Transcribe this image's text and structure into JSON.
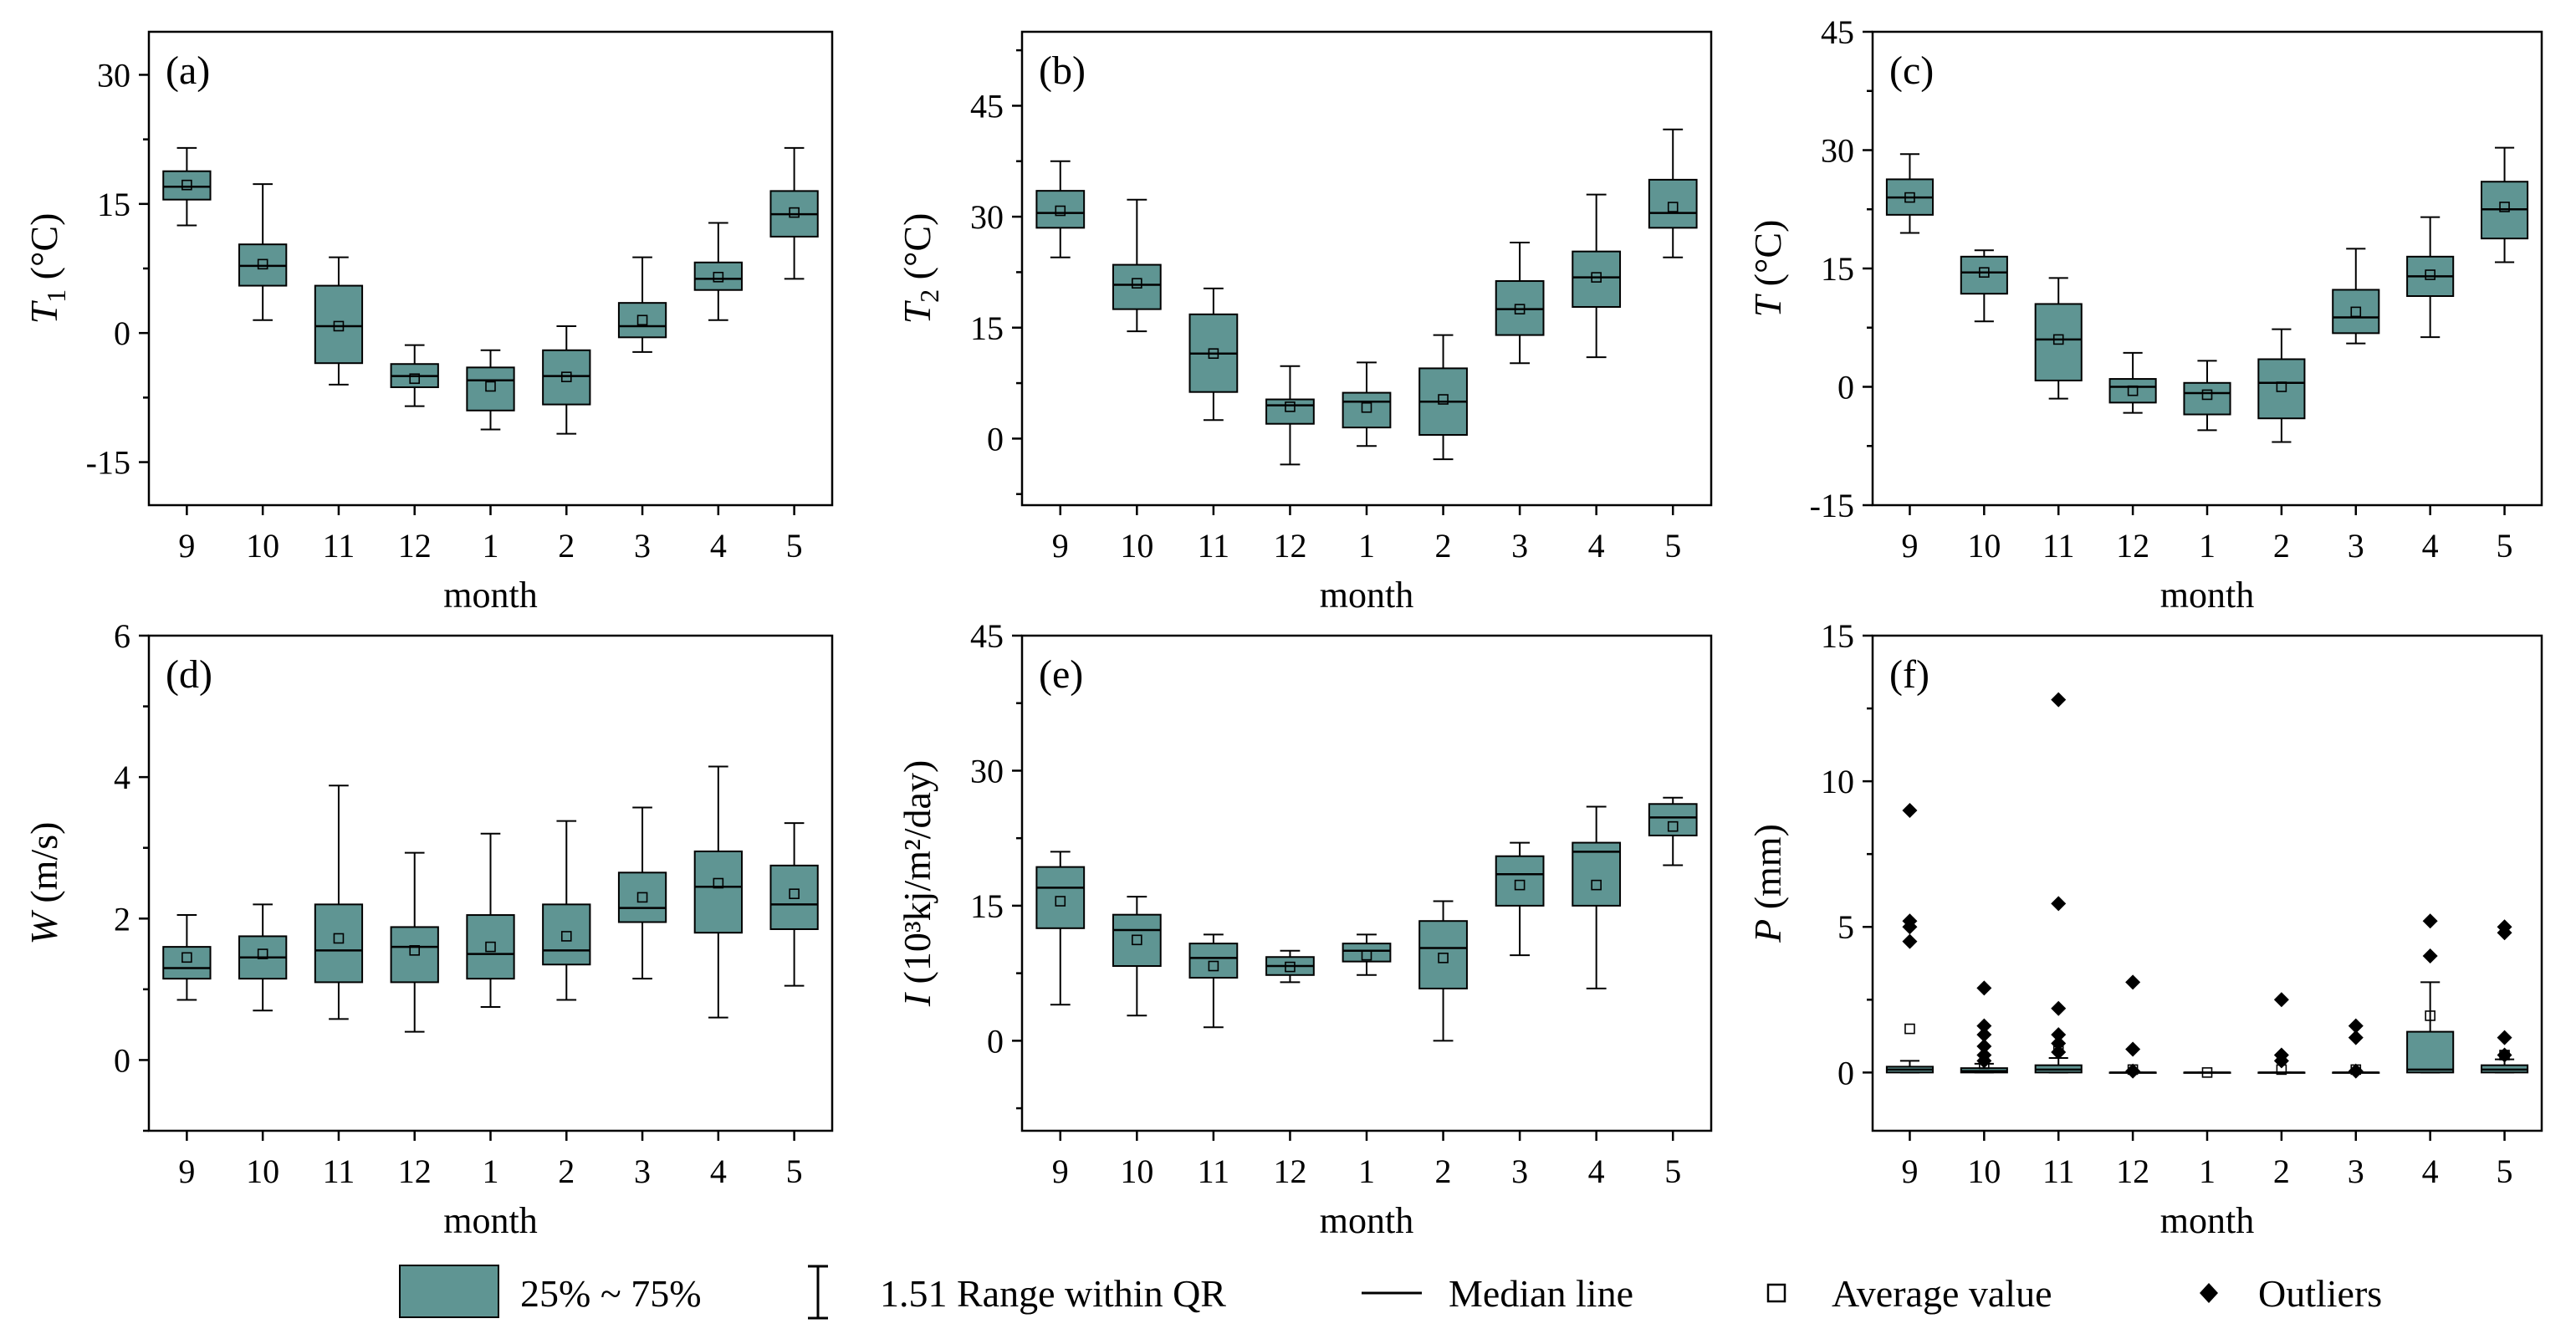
{
  "colors": {
    "box_fill": "#5f9593",
    "box_stroke": "#000000",
    "axis": "#000000"
  },
  "legend": {
    "box_label": "25% ~ 75%",
    "whisker_label": "1.51 Range within QR",
    "median_label": "Median line",
    "mean_label": "Average value",
    "outlier_label": "Outliers"
  },
  "chart_data": [
    {
      "type": "box",
      "panel_label": "(a)",
      "ylabel_main": "T",
      "ylabel_sub": "1",
      "ylabel_unit": " (°C)",
      "xlabel": "month",
      "categories": [
        "9",
        "10",
        "11",
        "12",
        "1",
        "2",
        "3",
        "4",
        "5"
      ],
      "ylim": [
        -20,
        35
      ],
      "yticks": [
        -15,
        0,
        15,
        30
      ],
      "minor_step": 7.5,
      "boxes": [
        {
          "min": 12.5,
          "q1": 15.5,
          "median": 17.0,
          "q3": 18.8,
          "max": 21.5,
          "mean": 17.2,
          "outliers": []
        },
        {
          "min": 1.5,
          "q1": 5.5,
          "median": 7.8,
          "q3": 10.3,
          "max": 17.3,
          "mean": 8.0,
          "outliers": []
        },
        {
          "min": -6.0,
          "q1": -3.5,
          "median": 0.8,
          "q3": 5.5,
          "max": 8.8,
          "mean": 0.8,
          "outliers": []
        },
        {
          "min": -8.5,
          "q1": -6.3,
          "median": -5.0,
          "q3": -3.6,
          "max": -1.4,
          "mean": -5.3,
          "outliers": []
        },
        {
          "min": -11.2,
          "q1": -9.0,
          "median": -5.5,
          "q3": -4.0,
          "max": -2.0,
          "mean": -6.2,
          "outliers": []
        },
        {
          "min": -11.7,
          "q1": -8.3,
          "median": -5.0,
          "q3": -2.0,
          "max": 0.8,
          "mean": -5.1,
          "outliers": []
        },
        {
          "min": -2.2,
          "q1": -0.5,
          "median": 0.8,
          "q3": 3.5,
          "max": 8.8,
          "mean": 1.5,
          "outliers": []
        },
        {
          "min": 1.5,
          "q1": 5.0,
          "median": 6.3,
          "q3": 8.2,
          "max": 12.8,
          "mean": 6.5,
          "outliers": []
        },
        {
          "min": 6.3,
          "q1": 11.2,
          "median": 13.8,
          "q3": 16.5,
          "max": 21.5,
          "mean": 14.0,
          "outliers": []
        }
      ]
    },
    {
      "type": "box",
      "panel_label": "(b)",
      "ylabel_main": "T",
      "ylabel_sub": "2",
      "ylabel_unit": " (°C)",
      "xlabel": "month",
      "categories": [
        "9",
        "10",
        "11",
        "12",
        "1",
        "2",
        "3",
        "4",
        "5"
      ],
      "ylim": [
        -9,
        55
      ],
      "yticks": [
        0,
        15,
        30,
        45
      ],
      "minor_step": 7.5,
      "boxes": [
        {
          "min": 24.5,
          "q1": 28.5,
          "median": 30.5,
          "q3": 33.5,
          "max": 37.5,
          "mean": 30.8,
          "outliers": []
        },
        {
          "min": 14.5,
          "q1": 17.5,
          "median": 20.8,
          "q3": 23.5,
          "max": 32.3,
          "mean": 21.0,
          "outliers": []
        },
        {
          "min": 2.5,
          "q1": 6.3,
          "median": 11.5,
          "q3": 16.8,
          "max": 20.3,
          "mean": 11.5,
          "outliers": []
        },
        {
          "min": -3.5,
          "q1": 2.0,
          "median": 4.5,
          "q3": 5.3,
          "max": 9.8,
          "mean": 4.3,
          "outliers": []
        },
        {
          "min": -1.0,
          "q1": 1.5,
          "median": 5.0,
          "q3": 6.2,
          "max": 10.3,
          "mean": 4.2,
          "outliers": []
        },
        {
          "min": -2.8,
          "q1": 0.5,
          "median": 5.0,
          "q3": 9.5,
          "max": 14.0,
          "mean": 5.3,
          "outliers": []
        },
        {
          "min": 10.2,
          "q1": 14.0,
          "median": 17.5,
          "q3": 21.3,
          "max": 26.5,
          "mean": 17.5,
          "outliers": []
        },
        {
          "min": 11.0,
          "q1": 17.8,
          "median": 21.8,
          "q3": 25.3,
          "max": 33.0,
          "mean": 21.8,
          "outliers": []
        },
        {
          "min": 24.5,
          "q1": 28.5,
          "median": 30.5,
          "q3": 35.0,
          "max": 41.8,
          "mean": 31.3,
          "outliers": []
        }
      ]
    },
    {
      "type": "box",
      "panel_label": "(c)",
      "ylabel_main": "T",
      "ylabel_sub": "",
      "ylabel_unit": " (°C)",
      "xlabel": "month",
      "categories": [
        "9",
        "10",
        "11",
        "12",
        "1",
        "2",
        "3",
        "4",
        "5"
      ],
      "ylim": [
        -15,
        45
      ],
      "yticks": [
        -15,
        0,
        15,
        30,
        45
      ],
      "minor_step": 7.5,
      "boxes": [
        {
          "min": 19.5,
          "q1": 21.8,
          "median": 24.0,
          "q3": 26.3,
          "max": 29.5,
          "mean": 24.0,
          "outliers": []
        },
        {
          "min": 8.3,
          "q1": 11.8,
          "median": 14.5,
          "q3": 16.5,
          "max": 17.3,
          "mean": 14.5,
          "outliers": []
        },
        {
          "min": -1.5,
          "q1": 0.8,
          "median": 6.0,
          "q3": 10.5,
          "max": 13.8,
          "mean": 6.0,
          "outliers": []
        },
        {
          "min": -3.3,
          "q1": -2.0,
          "median": 0.0,
          "q3": 1.0,
          "max": 4.3,
          "mean": -0.5,
          "outliers": []
        },
        {
          "min": -5.5,
          "q1": -3.5,
          "median": -0.8,
          "q3": 0.5,
          "max": 3.3,
          "mean": -1.0,
          "outliers": []
        },
        {
          "min": -7.0,
          "q1": -4.0,
          "median": 0.5,
          "q3": 3.5,
          "max": 7.3,
          "mean": 0.0,
          "outliers": []
        },
        {
          "min": 5.5,
          "q1": 6.8,
          "median": 8.8,
          "q3": 12.3,
          "max": 17.5,
          "mean": 9.5,
          "outliers": []
        },
        {
          "min": 6.3,
          "q1": 11.5,
          "median": 14.0,
          "q3": 16.5,
          "max": 21.5,
          "mean": 14.2,
          "outliers": []
        },
        {
          "min": 15.8,
          "q1": 18.8,
          "median": 22.5,
          "q3": 26.0,
          "max": 30.3,
          "mean": 22.8,
          "outliers": []
        }
      ]
    },
    {
      "type": "box",
      "panel_label": "(d)",
      "ylabel_main": "W",
      "ylabel_sub": "",
      "ylabel_unit": " (m/s)",
      "xlabel": "month",
      "categories": [
        "9",
        "10",
        "11",
        "12",
        "1",
        "2",
        "3",
        "4",
        "5"
      ],
      "ylim": [
        -1,
        6
      ],
      "yticks": [
        0,
        2,
        4,
        6
      ],
      "minor_step": 1,
      "boxes": [
        {
          "min": 0.85,
          "q1": 1.15,
          "median": 1.3,
          "q3": 1.6,
          "max": 2.05,
          "mean": 1.45,
          "outliers": []
        },
        {
          "min": 0.7,
          "q1": 1.15,
          "median": 1.45,
          "q3": 1.75,
          "max": 2.2,
          "mean": 1.5,
          "outliers": []
        },
        {
          "min": 0.58,
          "q1": 1.1,
          "median": 1.55,
          "q3": 2.2,
          "max": 3.88,
          "mean": 1.72,
          "outliers": []
        },
        {
          "min": 0.4,
          "q1": 1.1,
          "median": 1.6,
          "q3": 1.88,
          "max": 2.93,
          "mean": 1.55,
          "outliers": []
        },
        {
          "min": 0.75,
          "q1": 1.15,
          "median": 1.5,
          "q3": 2.05,
          "max": 3.2,
          "mean": 1.6,
          "outliers": []
        },
        {
          "min": 0.85,
          "q1": 1.35,
          "median": 1.55,
          "q3": 2.2,
          "max": 3.38,
          "mean": 1.75,
          "outliers": []
        },
        {
          "min": 1.15,
          "q1": 1.95,
          "median": 2.15,
          "q3": 2.65,
          "max": 3.57,
          "mean": 2.3,
          "outliers": []
        },
        {
          "min": 0.6,
          "q1": 1.8,
          "median": 2.45,
          "q3": 2.95,
          "max": 4.15,
          "mean": 2.5,
          "outliers": []
        },
        {
          "min": 1.05,
          "q1": 1.85,
          "median": 2.2,
          "q3": 2.75,
          "max": 3.35,
          "mean": 2.35,
          "outliers": []
        }
      ]
    },
    {
      "type": "box",
      "panel_label": "(e)",
      "ylabel_main": "I",
      "ylabel_sub": "",
      "ylabel_unit": " (10³kj/m²/day)",
      "xlabel": "month",
      "categories": [
        "9",
        "10",
        "11",
        "12",
        "1",
        "2",
        "3",
        "4",
        "5"
      ],
      "ylim": [
        -10,
        45
      ],
      "yticks": [
        0,
        15,
        30,
        45
      ],
      "minor_step": 7.5,
      "boxes": [
        {
          "min": 4.0,
          "q1": 12.5,
          "median": 17.0,
          "q3": 19.3,
          "max": 21.0,
          "mean": 15.5,
          "outliers": []
        },
        {
          "min": 2.8,
          "q1": 8.3,
          "median": 12.3,
          "q3": 14.0,
          "max": 16.0,
          "mean": 11.2,
          "outliers": []
        },
        {
          "min": 1.5,
          "q1": 7.0,
          "median": 9.2,
          "q3": 10.8,
          "max": 11.8,
          "mean": 8.3,
          "outliers": []
        },
        {
          "min": 6.5,
          "q1": 7.3,
          "median": 8.3,
          "q3": 9.3,
          "max": 10.0,
          "mean": 8.2,
          "outliers": []
        },
        {
          "min": 7.3,
          "q1": 8.8,
          "median": 10.0,
          "q3": 10.8,
          "max": 11.8,
          "mean": 9.5,
          "outliers": []
        },
        {
          "min": 0.0,
          "q1": 5.8,
          "median": 10.3,
          "q3": 13.3,
          "max": 15.5,
          "mean": 9.2,
          "outliers": []
        },
        {
          "min": 9.5,
          "q1": 15.0,
          "median": 18.5,
          "q3": 20.5,
          "max": 22.0,
          "mean": 17.3,
          "outliers": []
        },
        {
          "min": 5.8,
          "q1": 15.0,
          "median": 21.0,
          "q3": 22.0,
          "max": 26.0,
          "mean": 17.3,
          "outliers": []
        },
        {
          "min": 19.5,
          "q1": 22.8,
          "median": 24.8,
          "q3": 26.3,
          "max": 27.0,
          "mean": 23.8,
          "outliers": []
        }
      ]
    },
    {
      "type": "box",
      "panel_label": "(f)",
      "ylabel_main": "P",
      "ylabel_sub": "",
      "ylabel_unit": " (mm)",
      "xlabel": "month",
      "categories": [
        "9",
        "10",
        "11",
        "12",
        "1",
        "2",
        "3",
        "4",
        "5"
      ],
      "ylim": [
        -2,
        15
      ],
      "yticks": [
        0,
        5,
        10,
        15
      ],
      "minor_step": 2.5,
      "boxes": [
        {
          "min": 0.0,
          "q1": 0.0,
          "median": 0.1,
          "q3": 0.2,
          "max": 0.4,
          "mean": 1.5,
          "outliers": [
            9.0,
            5.2,
            5.0,
            4.5
          ]
        },
        {
          "min": 0.0,
          "q1": 0.0,
          "median": 0.05,
          "q3": 0.15,
          "max": 0.3,
          "mean": 0.3,
          "outliers": [
            2.9,
            1.6,
            1.3,
            0.9,
            0.6,
            0.4
          ]
        },
        {
          "min": 0.0,
          "q1": 0.0,
          "median": 0.1,
          "q3": 0.25,
          "max": 0.5,
          "mean": 0.8,
          "outliers": [
            12.8,
            5.8,
            2.2,
            1.3,
            1.0,
            0.7
          ]
        },
        {
          "min": 0.0,
          "q1": 0.0,
          "median": 0.0,
          "q3": 0.0,
          "max": 0.0,
          "mean": 0.1,
          "outliers": [
            3.1,
            0.8,
            0.05
          ]
        },
        {
          "min": 0.0,
          "q1": 0.0,
          "median": 0.0,
          "q3": 0.0,
          "max": 0.0,
          "mean": 0.0,
          "outliers": []
        },
        {
          "min": 0.0,
          "q1": 0.0,
          "median": 0.0,
          "q3": 0.0,
          "max": 0.0,
          "mean": 0.1,
          "outliers": [
            2.5,
            0.6,
            0.4
          ]
        },
        {
          "min": 0.0,
          "q1": 0.0,
          "median": 0.0,
          "q3": 0.0,
          "max": 0.0,
          "mean": 0.1,
          "outliers": [
            1.6,
            1.2,
            0.05
          ]
        },
        {
          "min": 0.0,
          "q1": 0.0,
          "median": 0.1,
          "q3": 1.4,
          "max": 3.1,
          "mean": 1.95,
          "outliers": [
            5.2,
            4.0
          ]
        },
        {
          "min": 0.0,
          "q1": 0.0,
          "median": 0.1,
          "q3": 0.25,
          "max": 0.45,
          "mean": 0.6,
          "outliers": [
            5.0,
            4.8,
            1.2,
            0.6
          ]
        }
      ]
    }
  ]
}
